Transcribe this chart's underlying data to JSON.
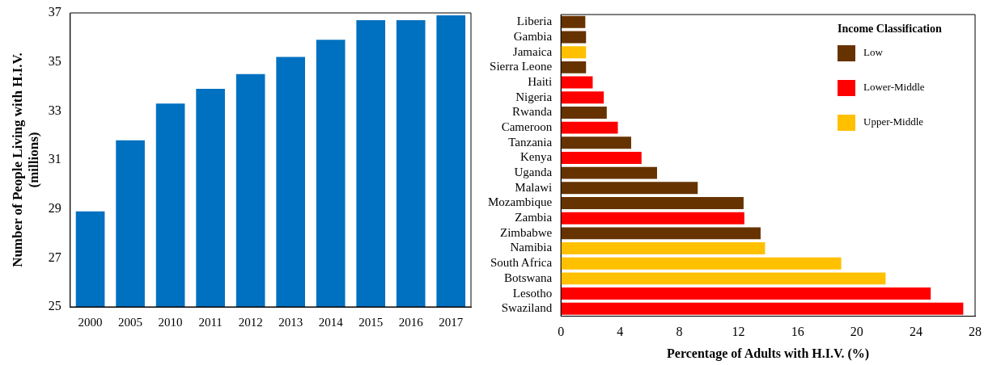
{
  "chart_data": [
    {
      "type": "bar",
      "ylabel": "Number of People Living with H.I.V. (millions)",
      "categories": [
        "2000",
        "2005",
        "2010",
        "2011",
        "2012",
        "2013",
        "2014",
        "2015",
        "2016",
        "2017"
      ],
      "values": [
        28.9,
        31.8,
        33.3,
        33.9,
        34.5,
        35.2,
        35.9,
        36.7,
        36.7,
        36.9
      ],
      "color": "#0070c0",
      "ylim": [
        25,
        37
      ],
      "yticks": [
        25,
        27,
        29,
        31,
        33,
        35,
        37
      ],
      "grid": false,
      "legend": false
    },
    {
      "type": "bar",
      "orientation": "horizontal",
      "stacked": true,
      "xlabel": "Percentage of Adults with H.I.V. (%)",
      "legend_title": "Income Classification",
      "legend": "top right",
      "grid": false,
      "categories": [
        "Liberia",
        "Gambia",
        "Jamaica",
        "Sierra Leone",
        "Haiti",
        "Nigeria",
        "Rwanda",
        "Cameroon",
        "Tanzania",
        "Kenya",
        "Uganda",
        "Malawi",
        "Mozambique",
        "Zambia",
        "Zimbabwe",
        "Namibia",
        "South Africa",
        "Botswana",
        "Lesotho",
        "Swaziland"
      ],
      "series": [
        {
          "name": "Low",
          "color": "#663300",
          "values": [
            1.65,
            1.7,
            null,
            1.7,
            null,
            null,
            3.1,
            null,
            4.75,
            null,
            6.5,
            9.25,
            12.35,
            null,
            13.5,
            null,
            null,
            null,
            null,
            null
          ]
        },
        {
          "name": "Lower-Middle",
          "color": "#ff0000",
          "values": [
            null,
            null,
            null,
            null,
            2.15,
            2.9,
            null,
            3.85,
            null,
            5.45,
            null,
            null,
            null,
            12.4,
            null,
            null,
            null,
            null,
            25.0,
            27.2
          ]
        },
        {
          "name": "Upper-Middle",
          "color": "#ffc000",
          "values": [
            null,
            null,
            1.7,
            null,
            null,
            null,
            null,
            null,
            null,
            null,
            null,
            null,
            null,
            null,
            null,
            13.8,
            18.95,
            21.95,
            null,
            null
          ]
        }
      ],
      "xlim": [
        0,
        28
      ],
      "xticks": [
        0,
        4,
        8,
        12,
        16,
        20,
        24,
        28
      ]
    }
  ]
}
